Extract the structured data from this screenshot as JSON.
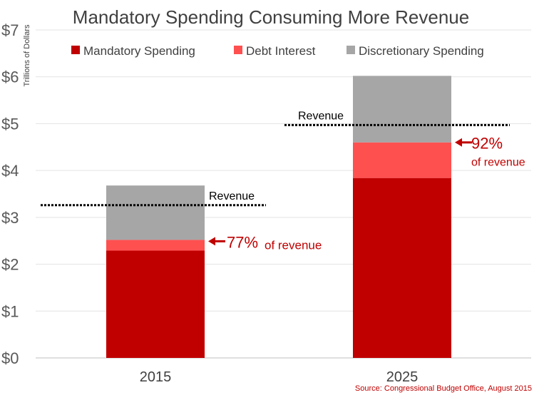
{
  "chart_data": {
    "type": "bar",
    "stacked": true,
    "title": "Mandatory Spending Consuming More Revenue",
    "ylabel": "Trillions of Dollars",
    "xlabel": "",
    "ylim": [
      0,
      7
    ],
    "yticks": [
      0,
      1,
      2,
      3,
      4,
      5,
      6,
      7
    ],
    "ytick_labels": [
      "$0",
      "$1",
      "$2",
      "$3",
      "$4",
      "$5",
      "$6",
      "$7"
    ],
    "grid": true,
    "legend_position": "top",
    "categories": [
      "2015",
      "2025"
    ],
    "series": [
      {
        "name": "Mandatory Spending",
        "color": "#c00000",
        "values": [
          2.29,
          3.84
        ]
      },
      {
        "name": "Debt Interest",
        "color": "#ff5050",
        "values": [
          0.23,
          0.76
        ]
      },
      {
        "name": "Discretionary Spending",
        "color": "#a6a6a6",
        "values": [
          1.16,
          1.42
        ]
      }
    ],
    "revenue": [
      {
        "category": "2015",
        "value": 3.26,
        "label": "Revenue"
      },
      {
        "category": "2025",
        "value": 4.97,
        "label": "Revenue"
      }
    ],
    "annotations": [
      {
        "category": "2015",
        "percent": "77%",
        "text": "of revenue",
        "color": "#c00000"
      },
      {
        "category": "2025",
        "percent": "92%",
        "text": "of revenue",
        "color": "#c00000"
      }
    ],
    "source": "Source: Congressional Budget Office, August 2015"
  }
}
